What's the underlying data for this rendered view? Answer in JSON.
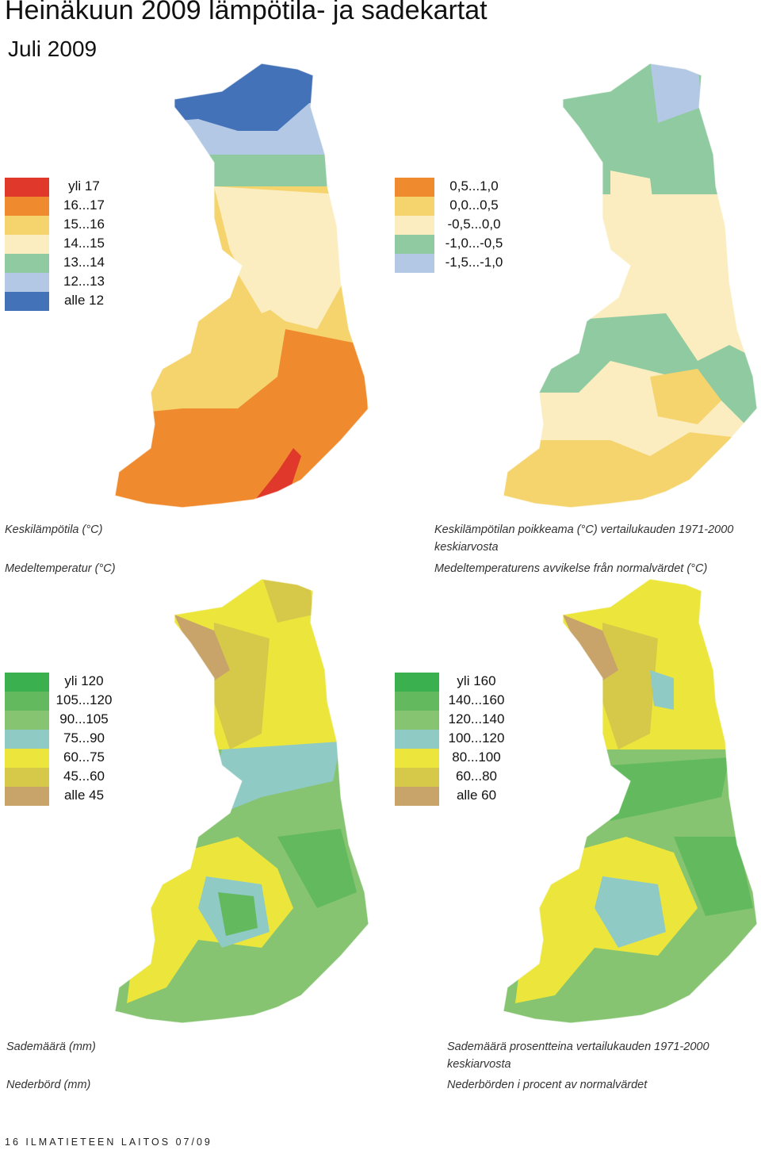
{
  "header": {
    "title": "Heinäkuun  2009 lämpötila- ja sadekartat",
    "subtitle": "Juli 2009"
  },
  "panels": {
    "temp": {
      "legend": [
        {
          "label": "yli 17",
          "color": "#e0382b"
        },
        {
          "label": "16...17",
          "color": "#ef8a2e"
        },
        {
          "label": "15...16",
          "color": "#f5d46e"
        },
        {
          "label": "14...15",
          "color": "#fbedc0"
        },
        {
          "label": "13...14",
          "color": "#8fcaa0"
        },
        {
          "label": "12...13",
          "color": "#b2c8e4"
        },
        {
          "label": "alle 12",
          "color": "#4472b8"
        }
      ],
      "caption_fi": "Keskilämpötila (°C)",
      "caption_sv": "Medeltemperatur (°C)"
    },
    "temp_dev": {
      "legend": [
        {
          "label": "0,5...1,0",
          "color": "#ef8a2e"
        },
        {
          "label": "0,0...0,5",
          "color": "#f5d46e"
        },
        {
          "label": "-0,5...0,0",
          "color": "#fbedc0"
        },
        {
          "label": "-1,0...-0,5",
          "color": "#8fcaa0"
        },
        {
          "label": "-1,5...-1,0",
          "color": "#b2c8e4"
        }
      ],
      "caption_fi_1": "Keskilämpötilan poikkeama (°C) vertailukauden 1971-2000",
      "caption_fi_2": "keskiarvosta",
      "caption_sv": "Medeltemperaturens avvikelse från normalvärdet (°C)"
    },
    "precip": {
      "legend": [
        {
          "label": "yli 120",
          "color": "#3bb04f"
        },
        {
          "label": "105...120",
          "color": "#62b95e"
        },
        {
          "label": "90...105",
          "color": "#86c472"
        },
        {
          "label": "75...90",
          "color": "#8fcac4"
        },
        {
          "label": "60...75",
          "color": "#ece63c"
        },
        {
          "label": "45...60",
          "color": "#d6c94a"
        },
        {
          "label": "alle 45",
          "color": "#c8a46b"
        }
      ],
      "caption_fi": "Sademäärä (mm)",
      "caption_sv": "Nederbörd (mm)"
    },
    "precip_pct": {
      "legend": [
        {
          "label": "yli 160",
          "color": "#3bb04f"
        },
        {
          "label": "140...160",
          "color": "#62b95e"
        },
        {
          "label": "120...140",
          "color": "#86c472"
        },
        {
          "label": "100...120",
          "color": "#8fcac4"
        },
        {
          "label": "80...100",
          "color": "#ece63c"
        },
        {
          "label": "60...80",
          "color": "#d6c94a"
        },
        {
          "label": "alle 60",
          "color": "#c8a46b"
        }
      ],
      "caption_fi_1": "Sademäärä prosentteina vertailukauden 1971-2000",
      "caption_fi_2": "keskiarvosta",
      "caption_sv": "Nederbörden i procent av normalvärdet"
    }
  },
  "footer": {
    "text": "16  ILMATIETEEN LAITOS 07/09"
  }
}
